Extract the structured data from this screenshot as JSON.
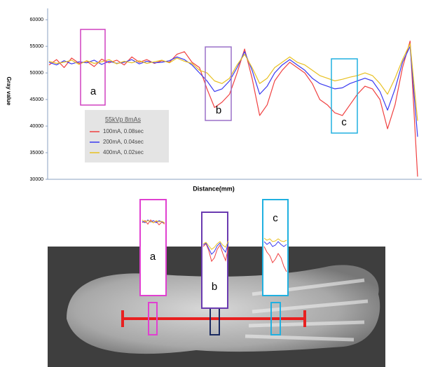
{
  "chart_data": {
    "type": "line",
    "y_label": "Gray value",
    "x_label": "Distance(mm)",
    "legend_title": "55kVp 8mAs",
    "annotations": [
      "a",
      "b",
      "c"
    ],
    "categories": [
      null,
      null,
      null,
      null,
      null,
      null,
      null,
      null,
      null,
      null,
      null,
      null,
      null,
      null,
      null,
      null,
      null,
      null,
      null,
      null,
      null,
      null,
      null,
      null,
      null,
      null,
      null,
      null,
      null,
      null,
      null,
      null,
      null,
      null,
      null,
      null,
      null,
      null,
      null,
      null,
      null,
      null,
      null,
      null,
      null,
      null,
      null,
      null,
      null,
      null
    ],
    "series": [
      {
        "name": "100mA, 0.08sec",
        "color": "#f04040",
        "values": [
          51500,
          52500,
          51000,
          52800,
          51800,
          52200,
          51200,
          52600,
          51900,
          52400,
          51500,
          53000,
          52000,
          52500,
          51800,
          52300,
          52000,
          53500,
          54000,
          52000,
          51000,
          47000,
          43500,
          44500,
          46000,
          50000,
          54500,
          49000,
          42000,
          44000,
          48500,
          50500,
          52000,
          51000,
          50000,
          48000,
          45000,
          44000,
          42500,
          42000,
          44000,
          46000,
          47500,
          47000,
          45000,
          39500,
          44000,
          51000,
          56000,
          30500
        ]
      },
      {
        "name": "200mA, 0.04sec",
        "color": "#3a3af0",
        "values": [
          52000,
          51500,
          52300,
          51700,
          52100,
          51900,
          52400,
          51600,
          52200,
          51800,
          52000,
          52500,
          51700,
          52200,
          51900,
          52000,
          52300,
          53000,
          52500,
          51500,
          50000,
          48500,
          46500,
          47000,
          48500,
          51000,
          54000,
          50500,
          46000,
          47500,
          50000,
          51500,
          52500,
          51500,
          50500,
          49000,
          48000,
          47500,
          47000,
          47200,
          48000,
          48500,
          49000,
          48500,
          46500,
          43000,
          47000,
          52000,
          55000,
          38000
        ]
      },
      {
        "name": "400mA, 0.02sec",
        "color": "#e8c020",
        "values": [
          52200,
          51800,
          52000,
          52400,
          51600,
          52300,
          51800,
          52100,
          52500,
          51700,
          52200,
          51900,
          52300,
          51800,
          52100,
          52400,
          51900,
          52800,
          52200,
          51800,
          50500,
          50000,
          48500,
          48000,
          49000,
          51500,
          53500,
          51000,
          48000,
          49000,
          51000,
          52000,
          53000,
          52000,
          51500,
          50500,
          49500,
          49000,
          48500,
          48800,
          49200,
          49500,
          50000,
          49500,
          48000,
          46000,
          49000,
          52500,
          55500,
          41000
        ]
      }
    ],
    "ylim": [
      30000,
      62000
    ],
    "yticks": [
      30000,
      35000,
      40000,
      45000,
      50000,
      55000,
      60000
    ],
    "legend": "lower left"
  },
  "figure": {
    "insets": [
      "a",
      "b",
      "c"
    ]
  }
}
